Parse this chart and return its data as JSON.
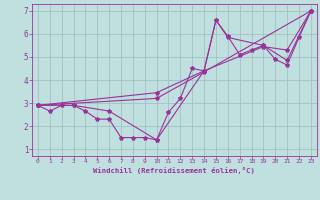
{
  "xlabel": "Windchill (Refroidissement éolien,°C)",
  "bg_color": "#c0e0e0",
  "line_color": "#993399",
  "grid_color": "#9dbdbd",
  "xlim": [
    -0.5,
    23.5
  ],
  "ylim": [
    0.7,
    7.3
  ],
  "xticks": [
    0,
    1,
    2,
    3,
    4,
    5,
    6,
    7,
    8,
    9,
    10,
    11,
    12,
    13,
    14,
    15,
    16,
    17,
    18,
    19,
    20,
    21,
    22,
    23
  ],
  "yticks": [
    1,
    2,
    3,
    4,
    5,
    6,
    7
  ],
  "series1": [
    [
      0,
      2.9
    ],
    [
      1,
      2.65
    ],
    [
      2,
      2.9
    ],
    [
      3,
      2.9
    ],
    [
      4,
      2.65
    ],
    [
      5,
      2.3
    ],
    [
      6,
      2.3
    ],
    [
      7,
      1.5
    ],
    [
      8,
      1.5
    ],
    [
      9,
      1.5
    ],
    [
      10,
      1.4
    ],
    [
      11,
      2.6
    ],
    [
      12,
      3.2
    ],
    [
      13,
      4.5
    ],
    [
      14,
      4.4
    ],
    [
      15,
      6.6
    ],
    [
      16,
      5.9
    ],
    [
      17,
      5.1
    ],
    [
      18,
      5.3
    ],
    [
      19,
      5.5
    ],
    [
      20,
      4.9
    ],
    [
      21,
      4.65
    ],
    [
      22,
      5.85
    ],
    [
      23,
      7.0
    ]
  ],
  "series2": [
    [
      0,
      2.9
    ],
    [
      3,
      2.9
    ],
    [
      6,
      2.65
    ],
    [
      10,
      1.4
    ],
    [
      14,
      4.4
    ],
    [
      15,
      6.6
    ],
    [
      16,
      5.85
    ],
    [
      19,
      5.5
    ],
    [
      21,
      4.85
    ],
    [
      23,
      7.0
    ]
  ],
  "series3": [
    [
      0,
      2.9
    ],
    [
      10,
      3.2
    ],
    [
      14,
      4.35
    ],
    [
      23,
      7.0
    ]
  ],
  "series4": [
    [
      0,
      2.9
    ],
    [
      10,
      3.45
    ],
    [
      14,
      4.4
    ],
    [
      19,
      5.45
    ],
    [
      21,
      5.3
    ],
    [
      23,
      7.0
    ]
  ]
}
